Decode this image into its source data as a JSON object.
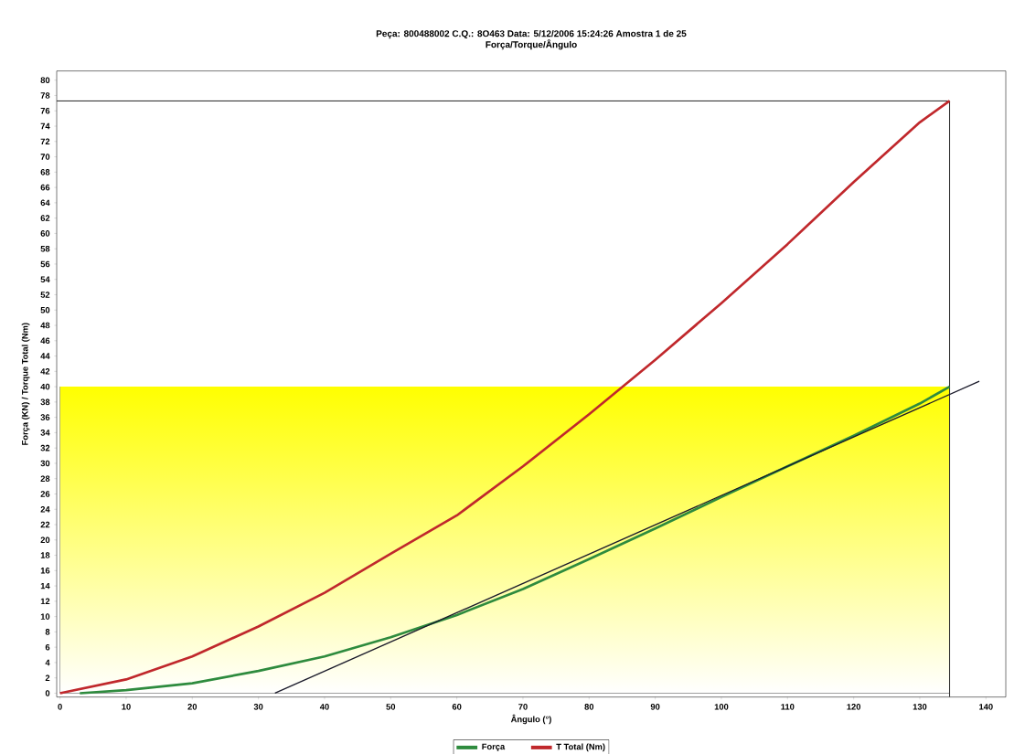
{
  "chart_data": {
    "type": "line",
    "title": "Peça: 800488002    C.Q.: 8O463    Data: 5/12/2006 15:24:26    Amostra 1 de 25",
    "subtitle": "Força/Torque/Ângulo",
    "xlabel": "Ângulo (°)",
    "ylabel": "Força (KN) / Torque Total (Nm)",
    "xlim": [
      -0.5,
      143
    ],
    "ylim": [
      -0.5,
      81.2
    ],
    "xticks": [
      0,
      10,
      20,
      30,
      40,
      50,
      60,
      70,
      80,
      90,
      100,
      110,
      120,
      130,
      140
    ],
    "yticks": [
      0,
      2,
      4,
      6,
      8,
      10,
      12,
      14,
      16,
      18,
      20,
      22,
      24,
      26,
      28,
      30,
      32,
      34,
      36,
      38,
      40,
      42,
      44,
      46,
      48,
      50,
      52,
      54,
      56,
      58,
      60,
      62,
      64,
      66,
      68,
      70,
      72,
      74,
      76,
      78,
      80
    ],
    "series": [
      {
        "name": "Força",
        "color": "#2e8b3e",
        "x": [
          3,
          10,
          20,
          30,
          40,
          50,
          60,
          70,
          80,
          90,
          100,
          110,
          120,
          130,
          134.5
        ],
        "values": [
          0,
          0.4,
          1.3,
          2.9,
          4.8,
          7.3,
          10.2,
          13.6,
          17.5,
          21.5,
          25.6,
          29.6,
          33.6,
          37.8,
          40
        ]
      },
      {
        "name": "T Total (Nm)",
        "color": "#c0282c",
        "x": [
          0,
          10,
          20,
          30,
          40,
          50,
          60,
          70,
          80,
          90,
          100,
          110,
          120,
          130,
          134.5
        ],
        "values": [
          0,
          1.8,
          4.8,
          8.7,
          13.1,
          18.2,
          23.2,
          29.6,
          36.4,
          43.5,
          50.9,
          58.6,
          66.7,
          74.5,
          77.3
        ]
      },
      {
        "color": "#1a1a2a",
        "x": [
          32.5,
          139
        ],
        "values": [
          0,
          40.7
        ]
      }
    ],
    "bands": [
      {
        "axis": "y",
        "from": 0,
        "to": 40,
        "color": "#ffff00"
      }
    ],
    "ref_lines": [
      {
        "axis": "y",
        "value": 77.3,
        "color": "#333333"
      },
      {
        "axis": "x",
        "value": 134.5,
        "color": "#333333"
      }
    ],
    "legend": "bottom",
    "grid": false,
    "marker": "none",
    "line_style": "solid"
  }
}
